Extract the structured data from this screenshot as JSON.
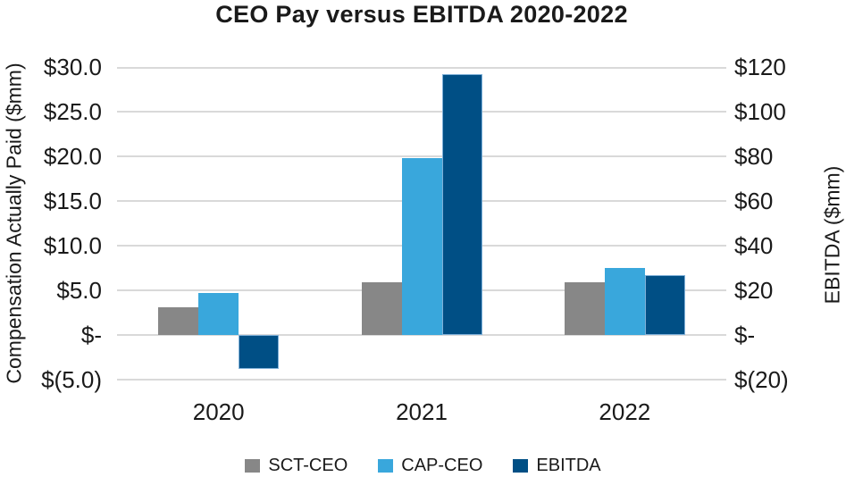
{
  "chart_data": {
    "type": "bar",
    "title": "CEO Pay versus EBITDA 2020-2022",
    "categories": [
      "2020",
      "2021",
      "2022"
    ],
    "series": [
      {
        "name": "SCT-CEO",
        "axis": "left",
        "color": "#878787",
        "values": [
          3.1,
          5.9,
          5.9
        ]
      },
      {
        "name": "CAP-CEO",
        "axis": "left",
        "color": "#39A7DC",
        "values": [
          4.7,
          19.8,
          7.5
        ]
      },
      {
        "name": "EBITDA",
        "axis": "right",
        "color": "#004F85",
        "border_color": "#7FB0D8",
        "values": [
          -15,
          117,
          27
        ]
      }
    ],
    "left_axis": {
      "label": "Compensation Actually Paid ($mm)",
      "min": -5,
      "max": 30,
      "ticks": [
        "$30.0",
        "$25.0",
        "$20.0",
        "$15.0",
        "$10.0",
        "$5.0",
        "$-",
        "$(5.0)"
      ]
    },
    "right_axis": {
      "label": "EBITDA ($mm)",
      "min": -20,
      "max": 120,
      "ticks": [
        "$120",
        "$100",
        "$80",
        "$60",
        "$40",
        "$20",
        "$-",
        "$(20)"
      ]
    },
    "legend": [
      "SCT-CEO",
      "CAP-CEO",
      "EBITDA"
    ],
    "legend_position": "bottom",
    "grid": true,
    "gridline_color": "#D9D9D9",
    "text_color": "#1A1A1A"
  }
}
